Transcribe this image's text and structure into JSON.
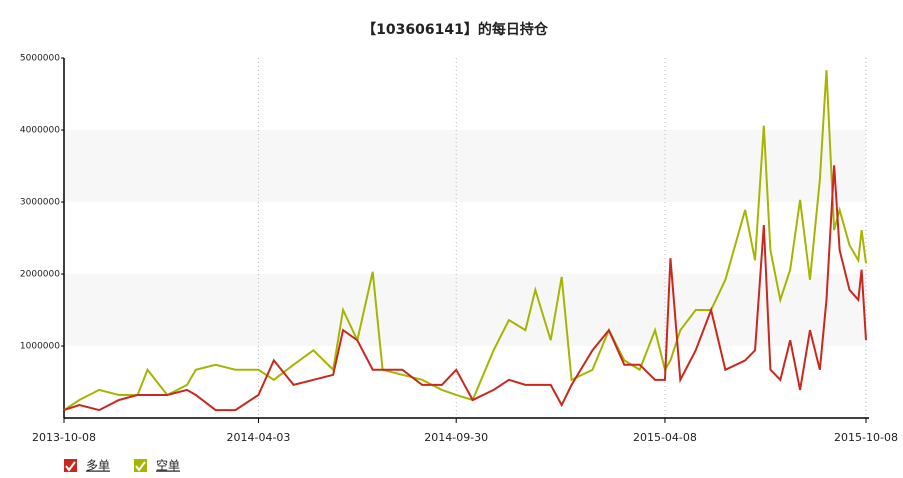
{
  "chart_data": {
    "type": "line",
    "title": "【103606141】的每日持仓",
    "x": [
      "2013-10-08",
      "2013-10-22",
      "2013-11-09",
      "2013-11-27",
      "2013-12-14",
      "2013-12-23",
      "2014-01-10",
      "2014-01-28",
      "2014-02-05",
      "2014-02-23",
      "2014-03-13",
      "2014-04-03",
      "2014-04-17",
      "2014-05-05",
      "2014-05-23",
      "2014-06-10",
      "2014-06-19",
      "2014-07-02",
      "2014-07-16",
      "2014-07-25",
      "2014-08-12",
      "2014-08-30",
      "2014-09-17",
      "2014-09-30",
      "2014-10-15",
      "2014-11-03",
      "2014-11-17",
      "2014-12-02",
      "2014-12-11",
      "2014-12-25",
      "2015-01-04",
      "2015-01-13",
      "2015-02-01",
      "2015-02-16",
      "2015-03-02",
      "2015-03-16",
      "2015-03-30",
      "2015-04-08",
      "2015-04-13",
      "2015-04-22",
      "2015-05-06",
      "2015-05-20",
      "2015-06-02",
      "2015-06-20",
      "2015-06-29",
      "2015-07-07",
      "2015-07-13",
      "2015-07-22",
      "2015-07-31",
      "2015-08-09",
      "2015-08-18",
      "2015-08-27",
      "2015-09-02",
      "2015-09-09",
      "2015-09-14",
      "2015-09-23",
      "2015-10-01",
      "2015-10-04",
      "2015-10-08"
    ],
    "series": [
      {
        "name": "多单",
        "color": "#c8281e",
        "values": [
          110000,
          180000,
          110000,
          250000,
          320000,
          320000,
          320000,
          390000,
          320000,
          110000,
          110000,
          320000,
          800000,
          460000,
          530000,
          600000,
          1220000,
          1080000,
          670000,
          670000,
          670000,
          460000,
          460000,
          670000,
          250000,
          390000,
          530000,
          460000,
          460000,
          460000,
          180000,
          460000,
          940000,
          1220000,
          740000,
          740000,
          530000,
          530000,
          2220000,
          530000,
          940000,
          1500000,
          670000,
          800000,
          940000,
          2680000,
          670000,
          530000,
          1080000,
          390000,
          1220000,
          670000,
          1640000,
          3510000,
          2330000,
          1780000,
          1640000,
          2060000,
          1080000
        ]
      },
      {
        "name": "空单",
        "color": "#a5b500",
        "values": [
          110000,
          250000,
          390000,
          320000,
          320000,
          670000,
          320000,
          460000,
          670000,
          740000,
          670000,
          670000,
          530000,
          740000,
          940000,
          670000,
          1500000,
          1080000,
          2030000,
          670000,
          600000,
          530000,
          390000,
          320000,
          250000,
          940000,
          1360000,
          1220000,
          1780000,
          1080000,
          1960000,
          530000,
          670000,
          1220000,
          800000,
          670000,
          1220000,
          670000,
          800000,
          1220000,
          1500000,
          1500000,
          1920000,
          2890000,
          2190000,
          4060000,
          2330000,
          1640000,
          2060000,
          3030000,
          1920000,
          3310000,
          4830000,
          2610000,
          2890000,
          2400000,
          2190000,
          2610000,
          2150000
        ]
      }
    ],
    "xlim": [
      "2013-10-08",
      "2015-10-08"
    ],
    "xticks": [
      "2013-10-08",
      "2014-04-03",
      "2014-09-30",
      "2015-04-08",
      "2015-10-08"
    ],
    "ylim": [
      0,
      5000000
    ],
    "yticks": [
      1000000,
      2000000,
      3000000,
      4000000,
      5000000
    ],
    "legend": "bottom-left"
  }
}
